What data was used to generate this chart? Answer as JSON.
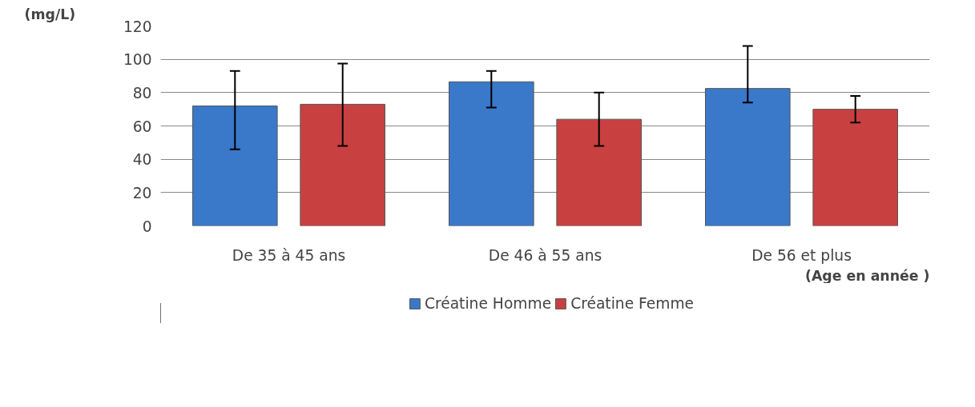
{
  "chart_data": {
    "type": "bar",
    "categories": [
      "De 35 à 45 ans",
      "De 46 à 55 ans",
      "De 56 et plus"
    ],
    "ylabel": "(mg/L)",
    "xlabel": "(Age en année )",
    "series": [
      {
        "name": "Créatine Homme",
        "color": "#3a78c9",
        "values": [
          72,
          86.5,
          82.5
        ],
        "errors": [
          [
            46,
            93
          ],
          [
            71,
            93
          ],
          [
            74,
            108
          ]
        ]
      },
      {
        "name": "Créatine Femme",
        "color": "#c94040",
        "values": [
          73,
          64,
          70
        ],
        "errors": [
          [
            48,
            97.5
          ],
          [
            48,
            80
          ],
          [
            62,
            78
          ]
        ]
      }
    ],
    "ylim": [
      0,
      120
    ],
    "yticks": [
      0,
      20,
      40,
      60,
      80,
      100,
      120
    ],
    "grid": "y",
    "legend": "bottom"
  }
}
